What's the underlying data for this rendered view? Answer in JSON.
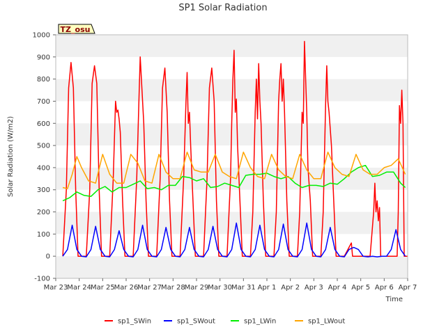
{
  "chart_data": {
    "type": "line",
    "title": "SP1 Solar Radiation",
    "xlabel": "Time",
    "ylabel": "Solar Radiation (W/m2)",
    "ylim": [
      -100,
      1000
    ],
    "yticks": [
      -100,
      0,
      100,
      200,
      300,
      400,
      500,
      600,
      700,
      800,
      900,
      1000
    ],
    "xlim": [
      0,
      15
    ],
    "xtick_labels": [
      "Mar 23",
      "Mar 24",
      "Mar 25",
      "Mar 26",
      "Mar 27",
      "Mar 28",
      "Mar 29",
      "Mar 30",
      "Mar 31",
      "Apr 1",
      "Apr 2",
      "Apr 3",
      "Apr 4",
      "Apr 5",
      "Apr 6",
      "Apr 7"
    ],
    "timezone_badge": "TZ_osu",
    "legend_position": "bottom",
    "grid": "horizontal bands",
    "series": [
      {
        "name": "sp1_SWin",
        "color": "#ff0000",
        "x": [
          0.3,
          0.45,
          0.55,
          0.65,
          0.75,
          0.85,
          0.95,
          1.1,
          1.3,
          1.45,
          1.55,
          1.65,
          1.75,
          1.85,
          1.95,
          2.1,
          2.3,
          2.45,
          2.55,
          2.6,
          2.65,
          2.7,
          2.75,
          2.85,
          2.95,
          3.1,
          3.3,
          3.45,
          3.55,
          3.6,
          3.65,
          3.75,
          3.85,
          3.95,
          4.1,
          4.3,
          4.45,
          4.55,
          4.65,
          4.75,
          4.85,
          4.95,
          5.1,
          5.3,
          5.45,
          5.55,
          5.6,
          5.65,
          5.7,
          5.75,
          5.85,
          5.95,
          6.1,
          6.3,
          6.45,
          6.55,
          6.65,
          6.75,
          6.85,
          6.95,
          7.1,
          7.3,
          7.45,
          7.5,
          7.55,
          7.6,
          7.65,
          7.7,
          7.75,
          7.85,
          7.95,
          8.1,
          8.3,
          8.4,
          8.5,
          8.55,
          8.6,
          8.65,
          8.7,
          8.75,
          8.85,
          8.95,
          9.1,
          9.3,
          9.4,
          9.5,
          9.55,
          9.6,
          9.65,
          9.7,
          9.75,
          9.85,
          9.95,
          10.1,
          10.3,
          10.4,
          10.5,
          10.55,
          10.6,
          10.65,
          10.7,
          10.75,
          10.85,
          10.95,
          11.1,
          11.3,
          11.4,
          11.5,
          11.55,
          11.6,
          11.65,
          11.75,
          11.85,
          11.95,
          12.1,
          12.3,
          12.4,
          12.5,
          12.55,
          12.6,
          12.65,
          12.7,
          12.75,
          12.85,
          12.95,
          13.1,
          13.4,
          13.55,
          13.6,
          13.65,
          13.7,
          13.75,
          13.8,
          13.85,
          14.0,
          14.4,
          14.5,
          14.55,
          14.6,
          14.65,
          14.7,
          14.75,
          14.8,
          14.85,
          14.95,
          15.0
        ],
        "y": [
          0,
          300,
          760,
          875,
          760,
          300,
          0,
          0,
          0,
          300,
          780,
          860,
          780,
          300,
          0,
          0,
          0,
          350,
          700,
          650,
          660,
          620,
          560,
          250,
          0,
          0,
          0,
          350,
          720,
          900,
          800,
          600,
          250,
          0,
          0,
          0,
          350,
          760,
          850,
          650,
          250,
          0,
          0,
          0,
          350,
          700,
          830,
          600,
          650,
          500,
          250,
          0,
          0,
          0,
          350,
          760,
          850,
          700,
          250,
          0,
          0,
          0,
          350,
          600,
          800,
          930,
          650,
          710,
          500,
          250,
          0,
          0,
          0,
          200,
          650,
          800,
          620,
          870,
          700,
          600,
          250,
          0,
          0,
          0,
          200,
          700,
          800,
          870,
          700,
          800,
          650,
          250,
          0,
          0,
          0,
          200,
          650,
          600,
          970,
          800,
          650,
          400,
          250,
          0,
          0,
          0,
          200,
          680,
          860,
          700,
          650,
          500,
          250,
          0,
          0,
          0,
          20,
          40,
          50,
          60,
          0,
          0,
          0,
          0,
          0,
          0,
          0,
          200,
          330,
          200,
          250,
          160,
          220,
          0,
          0,
          0,
          0,
          0,
          200,
          680,
          600,
          750,
          600,
          0,
          0,
          0
        ],
        "x_unit": "days since Mar 23"
      },
      {
        "name": "sp1_SWout",
        "color": "#0000ff",
        "x": [
          0.3,
          0.5,
          0.7,
          0.9,
          1.1,
          1.3,
          1.5,
          1.7,
          1.9,
          2.1,
          2.3,
          2.5,
          2.7,
          2.9,
          3.1,
          3.3,
          3.5,
          3.7,
          3.9,
          4.1,
          4.3,
          4.5,
          4.7,
          4.9,
          5.1,
          5.3,
          5.5,
          5.7,
          5.9,
          6.1,
          6.3,
          6.5,
          6.7,
          6.9,
          7.1,
          7.3,
          7.5,
          7.7,
          7.9,
          8.1,
          8.3,
          8.5,
          8.7,
          8.9,
          9.1,
          9.3,
          9.5,
          9.7,
          9.9,
          10.1,
          10.3,
          10.5,
          10.7,
          10.9,
          11.1,
          11.3,
          11.5,
          11.7,
          11.9,
          12.1,
          12.3,
          12.5,
          12.7,
          12.9,
          13.1,
          13.3,
          13.5,
          13.7,
          13.9,
          14.1,
          14.3,
          14.5,
          14.7,
          14.9
        ],
        "y": [
          0,
          30,
          140,
          30,
          0,
          -3,
          30,
          135,
          30,
          0,
          -3,
          30,
          115,
          30,
          0,
          -3,
          30,
          140,
          30,
          0,
          -3,
          30,
          130,
          30,
          0,
          -3,
          30,
          130,
          30,
          0,
          -3,
          30,
          135,
          30,
          0,
          -3,
          30,
          150,
          30,
          0,
          -3,
          30,
          140,
          30,
          0,
          -3,
          30,
          145,
          30,
          0,
          -3,
          30,
          150,
          30,
          0,
          -3,
          30,
          130,
          30,
          0,
          -3,
          30,
          40,
          30,
          0,
          -3,
          0,
          -3,
          0,
          0,
          30,
          120,
          30,
          0
        ],
        "x_unit": "days since Mar 23"
      },
      {
        "name": "sp1_LWin",
        "color": "#00ee00",
        "x": [
          0.3,
          0.6,
          0.9,
          1.2,
          1.5,
          1.8,
          2.1,
          2.4,
          2.7,
          3.0,
          3.3,
          3.6,
          3.9,
          4.2,
          4.5,
          4.8,
          5.1,
          5.4,
          5.7,
          6.0,
          6.3,
          6.6,
          6.9,
          7.2,
          7.5,
          7.8,
          8.1,
          8.4,
          8.7,
          9.0,
          9.3,
          9.6,
          9.9,
          10.2,
          10.5,
          10.8,
          11.1,
          11.4,
          11.7,
          12.0,
          12.3,
          12.6,
          12.9,
          13.2,
          13.5,
          13.8,
          14.1,
          14.4,
          14.7,
          14.9
        ],
        "y": [
          250,
          265,
          290,
          275,
          270,
          300,
          315,
          290,
          310,
          310,
          325,
          340,
          305,
          310,
          300,
          320,
          320,
          360,
          355,
          340,
          350,
          310,
          315,
          330,
          320,
          310,
          365,
          370,
          370,
          375,
          360,
          350,
          360,
          330,
          310,
          320,
          320,
          315,
          330,
          325,
          350,
          380,
          400,
          410,
          360,
          365,
          380,
          380,
          330,
          310
        ],
        "x_unit": "days since Mar 23"
      },
      {
        "name": "sp1_LWout",
        "color": "#ffa500",
        "x": [
          0.3,
          0.5,
          0.7,
          0.9,
          1.1,
          1.4,
          1.7,
          2.0,
          2.3,
          2.6,
          2.9,
          3.2,
          3.5,
          3.8,
          4.1,
          4.4,
          4.7,
          5.0,
          5.3,
          5.6,
          5.9,
          6.2,
          6.5,
          6.8,
          7.1,
          7.4,
          7.7,
          8.0,
          8.3,
          8.6,
          8.9,
          9.2,
          9.5,
          9.8,
          10.1,
          10.4,
          10.7,
          11.0,
          11.3,
          11.6,
          11.9,
          12.2,
          12.5,
          12.8,
          13.1,
          13.4,
          13.7,
          14.0,
          14.3,
          14.6,
          14.9
        ],
        "y": [
          310,
          305,
          370,
          450,
          400,
          340,
          330,
          460,
          370,
          330,
          330,
          460,
          420,
          340,
          330,
          460,
          380,
          350,
          350,
          470,
          390,
          380,
          380,
          460,
          380,
          360,
          350,
          470,
          400,
          360,
          350,
          460,
          390,
          360,
          350,
          460,
          390,
          350,
          350,
          470,
          400,
          370,
          360,
          460,
          390,
          370,
          370,
          400,
          410,
          440,
          370
        ],
        "x_unit": "days since Mar 23"
      }
    ]
  }
}
